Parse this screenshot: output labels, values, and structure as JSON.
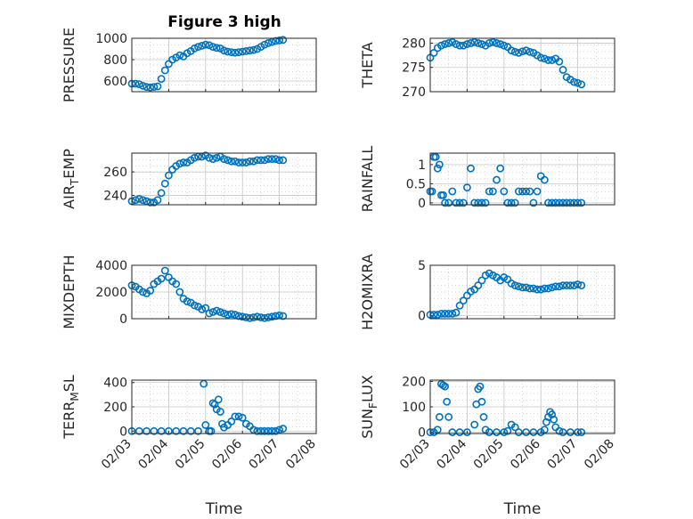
{
  "figure": {
    "title": "Figure 3 high",
    "colors": {
      "marker": "#0072BD",
      "axis": "#262626",
      "grid": "#c8c8c8",
      "background": "#ffffff"
    }
  },
  "chart_data": [
    {
      "type": "scatter",
      "ylabel": "PRESSURE",
      "grid": true,
      "ylim": [
        500,
        1000
      ],
      "yticks": [
        "600",
        "800",
        "1000"
      ],
      "xticks": [],
      "x": [
        0.0,
        0.1,
        0.2,
        0.3,
        0.4,
        0.5,
        0.6,
        0.7,
        0.8,
        0.9,
        1.0,
        1.1,
        1.2,
        1.3,
        1.4,
        1.5,
        1.6,
        1.7,
        1.8,
        1.9,
        2.0,
        2.1,
        2.2,
        2.3,
        2.4,
        2.5,
        2.6,
        2.7,
        2.8,
        2.9,
        3.0,
        3.1,
        3.2,
        3.3,
        3.4,
        3.5,
        3.6,
        3.7,
        3.8,
        3.9,
        4.0,
        4.1
      ],
      "y": [
        575,
        575,
        570,
        555,
        545,
        540,
        545,
        550,
        620,
        700,
        760,
        800,
        820,
        840,
        830,
        860,
        880,
        905,
        920,
        930,
        940,
        935,
        920,
        910,
        905,
        885,
        875,
        870,
        865,
        870,
        875,
        880,
        885,
        890,
        900,
        920,
        940,
        955,
        965,
        975,
        980,
        985
      ]
    },
    {
      "type": "scatter",
      "ylabel": "THETA",
      "grid": true,
      "ylim": [
        270,
        281
      ],
      "yticks": [
        "270",
        "275",
        "280"
      ],
      "xticks": [],
      "x": [
        0.0,
        0.1,
        0.2,
        0.3,
        0.4,
        0.5,
        0.6,
        0.7,
        0.8,
        0.9,
        1.0,
        1.1,
        1.2,
        1.3,
        1.4,
        1.5,
        1.6,
        1.7,
        1.8,
        1.9,
        2.0,
        2.1,
        2.2,
        2.3,
        2.4,
        2.5,
        2.6,
        2.7,
        2.8,
        2.9,
        3.0,
        3.1,
        3.2,
        3.3,
        3.4,
        3.5,
        3.6,
        3.7,
        3.8,
        3.9,
        4.0,
        4.1
      ],
      "y": [
        277.0,
        278.0,
        279.0,
        279.5,
        279.8,
        280.0,
        280.2,
        279.8,
        279.5,
        279.5,
        279.8,
        280.0,
        280.2,
        280.0,
        279.8,
        279.5,
        280.0,
        280.2,
        280.0,
        279.8,
        279.5,
        279.2,
        278.5,
        278.2,
        278.0,
        278.3,
        278.5,
        278.2,
        278.0,
        277.5,
        277.0,
        276.8,
        276.5,
        276.5,
        276.8,
        276.2,
        274.5,
        273.0,
        272.5,
        272.0,
        271.8,
        271.5
      ]
    },
    {
      "type": "scatter",
      "ylabel": "AIR_TEMP",
      "grid": true,
      "ylim": [
        232,
        276
      ],
      "yticks": [
        "240",
        "260"
      ],
      "xticks": [],
      "x": [
        0.0,
        0.1,
        0.2,
        0.3,
        0.4,
        0.5,
        0.6,
        0.7,
        0.8,
        0.9,
        1.0,
        1.1,
        1.2,
        1.3,
        1.4,
        1.5,
        1.6,
        1.7,
        1.8,
        1.9,
        2.0,
        2.1,
        2.2,
        2.3,
        2.4,
        2.5,
        2.6,
        2.7,
        2.8,
        2.9,
        3.0,
        3.1,
        3.2,
        3.3,
        3.4,
        3.5,
        3.6,
        3.7,
        3.8,
        3.9,
        4.0,
        4.1
      ],
      "y": [
        235,
        236,
        237,
        236,
        235,
        234,
        234,
        236,
        242,
        250,
        257,
        262,
        265,
        267,
        268,
        268,
        270,
        272,
        273,
        273,
        274,
        272,
        271,
        272,
        273,
        271,
        270,
        269,
        269,
        268,
        268,
        268,
        269,
        269,
        270,
        270,
        270,
        271,
        271,
        271,
        270,
        270
      ]
    },
    {
      "type": "scatter",
      "ylabel": "RAINFALL",
      "grid": true,
      "ylim": [
        -0.05,
        1.3
      ],
      "yticks": [
        "0",
        "0.5",
        "1"
      ],
      "xticks": [],
      "x": [
        0.0,
        0.05,
        0.1,
        0.15,
        0.2,
        0.25,
        0.3,
        0.35,
        0.4,
        0.5,
        0.6,
        0.7,
        0.8,
        0.9,
        1.0,
        1.1,
        1.2,
        1.3,
        1.4,
        1.5,
        1.6,
        1.7,
        1.8,
        1.9,
        2.0,
        2.1,
        2.2,
        2.3,
        2.4,
        2.5,
        2.6,
        2.7,
        2.8,
        2.9,
        3.0,
        3.1,
        3.2,
        3.3,
        3.4,
        3.5,
        3.6,
        3.7,
        3.8,
        3.9,
        4.0,
        4.1
      ],
      "y": [
        0.3,
        0.3,
        1.2,
        1.2,
        0.9,
        1.0,
        0.2,
        0.2,
        0.0,
        0.0,
        0.3,
        0.0,
        0.0,
        0.0,
        0.4,
        0.9,
        0.0,
        0.0,
        0.0,
        0.0,
        0.3,
        0.3,
        0.6,
        0.9,
        0.3,
        0.0,
        0.0,
        0.0,
        0.3,
        0.3,
        0.3,
        0.3,
        0.0,
        0.3,
        0.7,
        0.6,
        0.0,
        0.0,
        0.0,
        0.0,
        0.0,
        0.0,
        0.0,
        0.0,
        0.0,
        0.0
      ]
    },
    {
      "type": "scatter",
      "ylabel": "MIXDEPTH",
      "grid": true,
      "ylim": [
        0,
        4000
      ],
      "yticks": [
        "0",
        "2000",
        "4000"
      ],
      "xticks": [],
      "x": [
        0.0,
        0.1,
        0.2,
        0.3,
        0.4,
        0.5,
        0.6,
        0.7,
        0.8,
        0.9,
        1.0,
        1.1,
        1.2,
        1.3,
        1.4,
        1.5,
        1.6,
        1.7,
        1.8,
        1.9,
        2.0,
        2.1,
        2.2,
        2.3,
        2.4,
        2.5,
        2.6,
        2.7,
        2.8,
        2.9,
        3.0,
        3.1,
        3.2,
        3.3,
        3.4,
        3.5,
        3.6,
        3.7,
        3.8,
        3.9,
        4.0,
        4.1
      ],
      "y": [
        2500,
        2400,
        2200,
        2000,
        1900,
        2100,
        2600,
        2800,
        3000,
        3600,
        3100,
        2800,
        2600,
        2000,
        1500,
        1300,
        1200,
        1000,
        900,
        700,
        800,
        400,
        500,
        600,
        500,
        400,
        300,
        350,
        300,
        200,
        150,
        100,
        50,
        100,
        150,
        100,
        50,
        100,
        150,
        200,
        250,
        200
      ]
    },
    {
      "type": "scatter",
      "ylabel": "H2OMIXRA",
      "grid": true,
      "ylim": [
        -0.3,
        5.0
      ],
      "yticks": [
        "0",
        "5"
      ],
      "xticks": [],
      "x": [
        0.0,
        0.1,
        0.2,
        0.3,
        0.4,
        0.5,
        0.6,
        0.7,
        0.8,
        0.9,
        1.0,
        1.1,
        1.2,
        1.3,
        1.4,
        1.5,
        1.6,
        1.7,
        1.8,
        1.9,
        2.0,
        2.1,
        2.2,
        2.3,
        2.4,
        2.5,
        2.6,
        2.7,
        2.8,
        2.9,
        3.0,
        3.1,
        3.2,
        3.3,
        3.4,
        3.5,
        3.6,
        3.7,
        3.8,
        3.9,
        4.0,
        4.1
      ],
      "y": [
        0.1,
        0.1,
        0.1,
        0.2,
        0.2,
        0.2,
        0.2,
        0.3,
        1.0,
        1.5,
        2.0,
        2.4,
        2.6,
        3.0,
        3.5,
        4.0,
        4.2,
        4.0,
        3.8,
        3.5,
        3.8,
        3.6,
        3.2,
        3.0,
        2.9,
        2.8,
        2.8,
        2.7,
        2.7,
        2.6,
        2.6,
        2.7,
        2.7,
        2.8,
        2.9,
        2.9,
        3.0,
        3.0,
        3.0,
        3.0,
        3.1,
        3.0
      ]
    },
    {
      "type": "scatter",
      "ylabel": "TERR_MSL",
      "grid": true,
      "ylim": [
        -20,
        420
      ],
      "yticks": [
        "0",
        "200",
        "400"
      ],
      "xticks": [
        "02/03",
        "02/04",
        "02/05",
        "02/06",
        "02/07",
        "02/08"
      ],
      "xlabel": "Time",
      "x": [
        0.0,
        0.2,
        0.4,
        0.6,
        0.8,
        1.0,
        1.2,
        1.4,
        1.6,
        1.8,
        1.95,
        2.0,
        2.1,
        2.15,
        2.2,
        2.25,
        2.3,
        2.35,
        2.4,
        2.45,
        2.5,
        2.6,
        2.7,
        2.8,
        2.9,
        3.0,
        3.1,
        3.2,
        3.3,
        3.4,
        3.5,
        3.6,
        3.7,
        3.8,
        3.9,
        4.0,
        4.1
      ],
      "y": [
        0,
        0,
        0,
        0,
        0,
        0,
        0,
        0,
        0,
        0,
        390,
        50,
        0,
        0,
        230,
        220,
        180,
        260,
        160,
        60,
        30,
        50,
        80,
        120,
        120,
        110,
        60,
        40,
        10,
        0,
        0,
        0,
        0,
        0,
        0,
        10,
        20
      ]
    },
    {
      "type": "scatter",
      "ylabel": "SUN_FLUX",
      "grid": true,
      "ylim": [
        -5,
        205
      ],
      "yticks": [
        "0",
        "100",
        "200"
      ],
      "xticks": [
        "02/03",
        "02/04",
        "02/05",
        "02/06",
        "02/07",
        "02/08"
      ],
      "xlabel": "Time",
      "x": [
        0.0,
        0.1,
        0.2,
        0.25,
        0.3,
        0.35,
        0.4,
        0.45,
        0.5,
        0.6,
        0.8,
        1.0,
        1.2,
        1.25,
        1.3,
        1.35,
        1.4,
        1.45,
        1.5,
        1.6,
        1.8,
        2.0,
        2.1,
        2.2,
        2.3,
        2.4,
        2.6,
        2.8,
        3.0,
        3.1,
        3.15,
        3.2,
        3.25,
        3.3,
        3.35,
        3.4,
        3.5,
        3.6,
        3.8,
        4.0,
        4.1
      ],
      "y": [
        0,
        0,
        10,
        60,
        190,
        185,
        180,
        120,
        60,
        0,
        0,
        0,
        30,
        110,
        170,
        180,
        120,
        60,
        10,
        0,
        0,
        0,
        5,
        30,
        20,
        0,
        0,
        0,
        0,
        10,
        40,
        60,
        80,
        70,
        50,
        20,
        5,
        0,
        0,
        0,
        0
      ]
    }
  ]
}
